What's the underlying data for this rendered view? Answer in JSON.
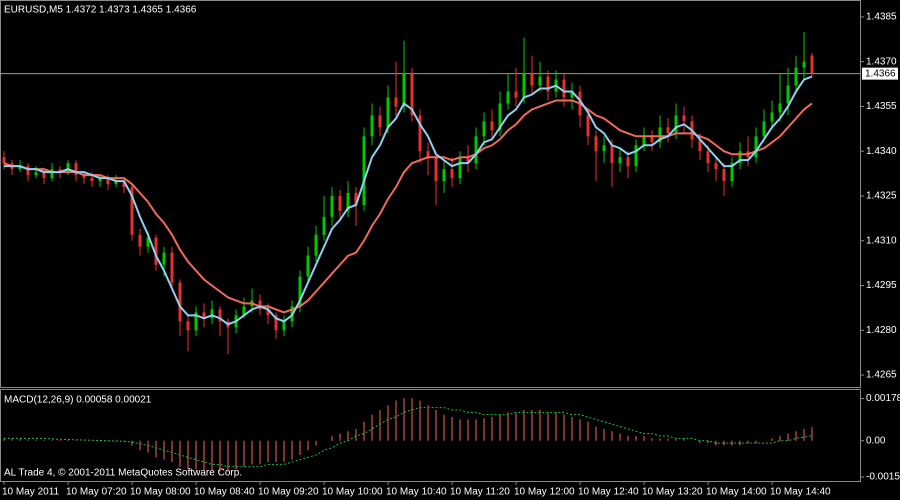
{
  "chart_data": {
    "type": "candlestick",
    "title": "EURUSD,M5  1.4372 1.4373 1.4365 1.4366",
    "footer": "AL Trade 4, © 2001-2011 MetaQuotes Software Corp.",
    "up_color": "#00c800",
    "down_color": "#e83030",
    "current_price": 1.4366,
    "ylim": [
      1.4261,
      1.439
    ],
    "yticks": [
      1.4385,
      {
        "value": 1.437,
        "label": "1.4370"
      },
      1.4355,
      {
        "value": 1.434,
        "label": "1.4340"
      },
      1.4325,
      {
        "value": 1.431,
        "label": "1.4310"
      },
      1.4295,
      {
        "value": 1.428,
        "label": "1.4280"
      },
      1.4265
    ],
    "categories": [
      "10 May 2011",
      null,
      null,
      null,
      null,
      null,
      null,
      null,
      "10 May 07:20",
      null,
      null,
      null,
      null,
      null,
      null,
      null,
      "10 May 08:00",
      null,
      null,
      null,
      null,
      null,
      null,
      null,
      "10 May 08:40",
      null,
      null,
      null,
      null,
      null,
      null,
      null,
      "10 May 09:20",
      null,
      null,
      null,
      null,
      null,
      null,
      null,
      "10 May 10:00",
      null,
      null,
      null,
      null,
      null,
      null,
      null,
      "10 May 10:40",
      null,
      null,
      null,
      null,
      null,
      null,
      null,
      "10 May 11:20",
      null,
      null,
      null,
      null,
      null,
      null,
      null,
      "10 May 12:00",
      null,
      null,
      null,
      null,
      null,
      null,
      null,
      "10 May 12:40",
      null,
      null,
      null,
      null,
      null,
      null,
      null,
      "10 May 13:20",
      null,
      null,
      null,
      null,
      null,
      null,
      null,
      "10 May 14:00",
      null,
      null,
      null,
      null,
      null,
      null,
      null,
      "10 May 14:40",
      null,
      null,
      null,
      null,
      null
    ],
    "open": [
      1.4338,
      1.4336,
      1.4334,
      1.4335,
      1.4332,
      1.4333,
      1.4331,
      1.4334,
      1.4333,
      1.4336,
      1.4332,
      1.4331,
      1.433,
      1.4331,
      1.4329,
      1.433,
      1.4328,
      1.4312,
      1.4308,
      1.4311,
      1.4302,
      1.4306,
      1.4296,
      1.4283,
      1.428,
      1.4286,
      1.4284,
      1.4287,
      1.4283,
      1.4281,
      1.4285,
      1.4288,
      1.429,
      1.4287,
      1.4285,
      1.428,
      1.4283,
      1.4288,
      1.4298,
      1.4305,
      1.4312,
      1.4318,
      1.4325,
      1.432,
      1.4326,
      1.4322,
      1.4345,
      1.4352,
      1.4348,
      1.4358,
      1.4355,
      1.4366,
      1.4352,
      1.434,
      1.4338,
      1.433,
      1.4334,
      1.4331,
      1.4338,
      1.4336,
      1.4345,
      1.435,
      1.4347,
      1.4356,
      1.436,
      1.4358,
      1.4366,
      1.4362,
      1.4365,
      1.436,
      1.4364,
      1.4358,
      1.436,
      1.4352,
      1.4345,
      1.434,
      1.4342,
      1.4336,
      1.4338,
      1.4335,
      1.4342,
      1.4345,
      1.4343,
      1.4348,
      1.4346,
      1.4352,
      1.435,
      1.4344,
      1.434,
      1.4336,
      1.4334,
      1.433,
      1.4336,
      1.434,
      1.4338,
      1.4345,
      1.435,
      1.4353,
      1.4356,
      1.4362,
      1.4368,
      1.4372
    ],
    "high": [
      1.434,
      1.4337,
      1.4337,
      1.4336,
      1.4335,
      1.4334,
      1.4336,
      1.4335,
      1.4337,
      1.4337,
      1.4333,
      1.4333,
      1.4332,
      1.4332,
      1.4332,
      1.4331,
      1.4329,
      1.4314,
      1.4313,
      1.4312,
      1.4308,
      1.4308,
      1.4297,
      1.4285,
      1.4288,
      1.4289,
      1.429,
      1.4288,
      1.4284,
      1.4287,
      1.4291,
      1.4294,
      1.4292,
      1.4289,
      1.4286,
      1.4285,
      1.429,
      1.43,
      1.4308,
      1.4315,
      1.4325,
      1.4328,
      1.4327,
      1.433,
      1.4328,
      1.4348,
      1.4356,
      1.4355,
      1.4362,
      1.437,
      1.4377,
      1.4368,
      1.4354,
      1.4343,
      1.434,
      1.4337,
      1.4338,
      1.434,
      1.4342,
      1.4348,
      1.4353,
      1.4354,
      1.436,
      1.4366,
      1.4368,
      1.4378,
      1.4372,
      1.437,
      1.4367,
      1.4367,
      1.4366,
      1.4363,
      1.4362,
      1.4354,
      1.4347,
      1.4345,
      1.4344,
      1.4341,
      1.434,
      1.4344,
      1.4348,
      1.4347,
      1.4352,
      1.4351,
      1.4356,
      1.4355,
      1.4352,
      1.4346,
      1.4342,
      1.4338,
      1.4336,
      1.4338,
      1.4343,
      1.4345,
      1.4348,
      1.4354,
      1.4357,
      1.4366,
      1.4368,
      1.4372,
      1.438,
      1.4373
    ],
    "low": [
      1.4334,
      1.4332,
      1.4333,
      1.433,
      1.4331,
      1.4329,
      1.433,
      1.4331,
      1.4332,
      1.433,
      1.4329,
      1.4328,
      1.4328,
      1.4327,
      1.4328,
      1.4326,
      1.431,
      1.4305,
      1.4306,
      1.43,
      1.4298,
      1.4294,
      1.4278,
      1.4273,
      1.4278,
      1.4281,
      1.4282,
      1.4278,
      1.4272,
      1.4279,
      1.4284,
      1.4286,
      1.4285,
      1.4282,
      1.4277,
      1.4278,
      1.4281,
      1.4286,
      1.4296,
      1.4303,
      1.431,
      1.4315,
      1.4317,
      1.4318,
      1.4315,
      1.432,
      1.4342,
      1.4345,
      1.4346,
      1.4352,
      1.4353,
      1.435,
      1.4336,
      1.4332,
      1.4322,
      1.4326,
      1.4328,
      1.4329,
      1.4333,
      1.4334,
      1.4342,
      1.4344,
      1.4345,
      1.4354,
      1.4355,
      1.4356,
      1.4359,
      1.436,
      1.4357,
      1.4358,
      1.4355,
      1.4354,
      1.4348,
      1.4342,
      1.433,
      1.4336,
      1.4328,
      1.4333,
      1.4331,
      1.4333,
      1.434,
      1.434,
      1.4341,
      1.4343,
      1.4344,
      1.4346,
      1.4341,
      1.4337,
      1.4333,
      1.433,
      1.4325,
      1.4328,
      1.4334,
      1.4335,
      1.4336,
      1.4343,
      1.4348,
      1.435,
      1.4352,
      1.436,
      1.4364,
      1.4365
    ],
    "close": [
      1.4336,
      1.4334,
      1.4335,
      1.4332,
      1.4333,
      1.4331,
      1.4334,
      1.4333,
      1.4336,
      1.4332,
      1.4331,
      1.433,
      1.4331,
      1.4329,
      1.433,
      1.4328,
      1.4312,
      1.4308,
      1.4311,
      1.4302,
      1.4306,
      1.4296,
      1.4283,
      1.428,
      1.4286,
      1.4284,
      1.4287,
      1.4283,
      1.4281,
      1.4285,
      1.4288,
      1.429,
      1.4287,
      1.4285,
      1.428,
      1.4283,
      1.4288,
      1.4298,
      1.4305,
      1.4312,
      1.4318,
      1.4325,
      1.432,
      1.4326,
      1.4322,
      1.4345,
      1.4352,
      1.4348,
      1.4358,
      1.4355,
      1.4366,
      1.4352,
      1.434,
      1.4338,
      1.433,
      1.4334,
      1.4331,
      1.4338,
      1.4336,
      1.4345,
      1.435,
      1.4347,
      1.4356,
      1.436,
      1.4358,
      1.4366,
      1.4362,
      1.4365,
      1.436,
      1.4364,
      1.4358,
      1.436,
      1.4352,
      1.4345,
      1.434,
      1.4342,
      1.4336,
      1.4338,
      1.4335,
      1.4342,
      1.4345,
      1.4343,
      1.4348,
      1.4346,
      1.4352,
      1.435,
      1.4344,
      1.434,
      1.4336,
      1.4334,
      1.433,
      1.4336,
      1.434,
      1.4338,
      1.4345,
      1.435,
      1.4353,
      1.4356,
      1.4362,
      1.4368,
      1.437,
      1.4366
    ],
    "overlays": [
      {
        "color": "#f06a5a",
        "values": [
          1.4336,
          1.4335,
          1.4335,
          1.4334,
          1.4334,
          1.4334,
          1.4333,
          1.4333,
          1.4333,
          1.4333,
          1.4332,
          1.4332,
          1.4332,
          1.4331,
          1.4331,
          1.4331,
          1.4329,
          1.4326,
          1.4323,
          1.4319,
          1.4316,
          1.4312,
          1.4307,
          1.4303,
          1.43,
          1.4297,
          1.4295,
          1.4293,
          1.4291,
          1.429,
          1.4289,
          1.4289,
          1.4288,
          1.4288,
          1.4287,
          1.4286,
          1.4287,
          1.4288,
          1.429,
          1.4293,
          1.4296,
          1.4299,
          1.4302,
          1.4305,
          1.4306,
          1.431,
          1.4315,
          1.4319,
          1.4324,
          1.4328,
          1.4333,
          1.4336,
          1.4337,
          1.4338,
          1.4338,
          1.4338,
          1.4337,
          1.4338,
          1.4338,
          1.4339,
          1.4341,
          1.4342,
          1.4344,
          1.4347,
          1.4349,
          1.4352,
          1.4354,
          1.4355,
          1.4356,
          1.4357,
          1.4357,
          1.4357,
          1.4356,
          1.4354,
          1.4352,
          1.4351,
          1.4349,
          1.4347,
          1.4346,
          1.4345,
          1.4345,
          1.4345,
          1.4345,
          1.4345,
          1.4346,
          1.4346,
          1.4346,
          1.4345,
          1.4344,
          1.4342,
          1.434,
          1.4339,
          1.4339,
          1.4339,
          1.434,
          1.4341,
          1.4343,
          1.4345,
          1.4348,
          1.4351,
          1.4354,
          1.4356
        ]
      },
      {
        "color": "#8fd0f0",
        "values": [
          1.4335,
          1.4335,
          1.4335,
          1.4334,
          1.4334,
          1.4333,
          1.4333,
          1.4333,
          1.4334,
          1.4333,
          1.4333,
          1.4332,
          1.4331,
          1.4331,
          1.433,
          1.433,
          1.4325,
          1.4318,
          1.4312,
          1.4305,
          1.43,
          1.4294,
          1.4288,
          1.4285,
          1.4285,
          1.4284,
          1.4285,
          1.4284,
          1.4282,
          1.4283,
          1.4285,
          1.4287,
          1.4288,
          1.4287,
          1.4284,
          1.4283,
          1.4285,
          1.429,
          1.4296,
          1.4302,
          1.4308,
          1.4314,
          1.4317,
          1.4321,
          1.4322,
          1.433,
          1.4338,
          1.4342,
          1.4348,
          1.4351,
          1.4356,
          1.4354,
          1.4349,
          1.4345,
          1.4339,
          1.4337,
          1.4335,
          1.4336,
          1.4336,
          1.4339,
          1.4343,
          1.4344,
          1.4348,
          1.4352,
          1.4354,
          1.4358,
          1.4359,
          1.4361,
          1.4361,
          1.4362,
          1.436,
          1.436,
          1.4357,
          1.4353,
          1.4348,
          1.4346,
          1.4342,
          1.4341,
          1.4339,
          1.434,
          1.4342,
          1.4342,
          1.4344,
          1.4345,
          1.4348,
          1.4349,
          1.4347,
          1.4344,
          1.4341,
          1.4338,
          1.4335,
          1.4335,
          1.4337,
          1.4337,
          1.434,
          1.4344,
          1.4348,
          1.4351,
          1.4355,
          1.436,
          1.4364,
          1.4365
        ]
      }
    ],
    "macd": {
      "title": "MACD(12,26,9) 0.00058 0.00021",
      "ylim": [
        -0.0017,
        0.0021
      ],
      "yticks": [
        0.00178,
        {
          "value": 0,
          "label": "0.00"
        },
        -0.00153
      ],
      "histogram": {
        "color": "#f06a5a",
        "values": [
          0.0001,
          0.0001,
          8e-05,
          6e-05,
          5e-05,
          4e-05,
          4e-05,
          3e-05,
          4e-05,
          2e-05,
          1e-05,
          -1e-05,
          -2e-05,
          -3e-05,
          -4e-05,
          -5e-05,
          -0.0002,
          -0.0004,
          -0.0005,
          -0.0007,
          -0.0008,
          -0.0009,
          -0.0011,
          -0.0012,
          -0.0012,
          -0.0013,
          -0.0013,
          -0.0013,
          -0.0013,
          -0.0012,
          -0.0011,
          -0.001,
          -0.001,
          -0.0009,
          -0.0009,
          -0.0009,
          -0.0008,
          -0.0006,
          -0.0004,
          -0.0002,
          0,
          0.0002,
          0.0003,
          0.0004,
          0.0005,
          0.0008,
          0.0011,
          0.0013,
          0.0015,
          0.0017,
          0.0018,
          0.0018,
          0.0017,
          0.0015,
          0.0013,
          0.0011,
          0.001,
          0.0009,
          0.0009,
          0.0009,
          0.00095,
          0.001,
          0.0011,
          0.0012,
          0.0012,
          0.0013,
          0.0013,
          0.0013,
          0.0012,
          0.0012,
          0.0011,
          0.001,
          0.0009,
          0.0008,
          0.0006,
          0.0005,
          0.0004,
          0.0003,
          0.0002,
          0.0002,
          0.0002,
          0.0001,
          0.0001,
          0.0001,
          0.0001,
          0.0001,
          0,
          -0.0001,
          -0.0001,
          -0.0002,
          -0.0002,
          -0.0002,
          -0.0002,
          -0.0001,
          -0.0001,
          0,
          0.0001,
          0.0002,
          0.0003,
          0.0004,
          0.0005,
          0.00058
        ]
      },
      "signal": {
        "color": "#20c040",
        "values": [
          0.0001,
          0.0001,
          0.0001,
          0.0001,
          0.0001,
          0.0001,
          8e-05,
          6e-05,
          5e-05,
          4e-05,
          3e-05,
          2e-05,
          1e-05,
          0,
          -1e-05,
          -2e-05,
          -6e-05,
          -0.00013,
          -0.0002,
          -0.0003,
          -0.0004,
          -0.0005,
          -0.0006,
          -0.0007,
          -0.0008,
          -0.0009,
          -0.001,
          -0.001,
          -0.0011,
          -0.0011,
          -0.0011,
          -0.0011,
          -0.0011,
          -0.001,
          -0.001,
          -0.001,
          -0.0009,
          -0.0008,
          -0.0007,
          -0.0006,
          -0.0004,
          -0.0003,
          -0.0001,
          0,
          0.0002,
          0.0003,
          0.0005,
          0.0007,
          0.0009,
          0.001,
          0.0012,
          0.0013,
          0.0014,
          0.0014,
          0.0014,
          0.0014,
          0.0013,
          0.0013,
          0.0012,
          0.0012,
          0.0011,
          0.0011,
          0.0011,
          0.0011,
          0.0012,
          0.0012,
          0.0012,
          0.0012,
          0.0012,
          0.0012,
          0.0012,
          0.0011,
          0.0011,
          0.001,
          0.0009,
          0.0008,
          0.0007,
          0.0006,
          0.0005,
          0.0004,
          0.0003,
          0.0003,
          0.0002,
          0.0002,
          0.0001,
          0.0001,
          0.0001,
          0,
          0,
          -0.0001,
          -0.0001,
          -0.0001,
          -0.0001,
          -0.0001,
          -0.0001,
          -0.0001,
          -0.0001,
          0,
          0,
          0.0001,
          0.00015,
          0.00021
        ]
      }
    }
  }
}
